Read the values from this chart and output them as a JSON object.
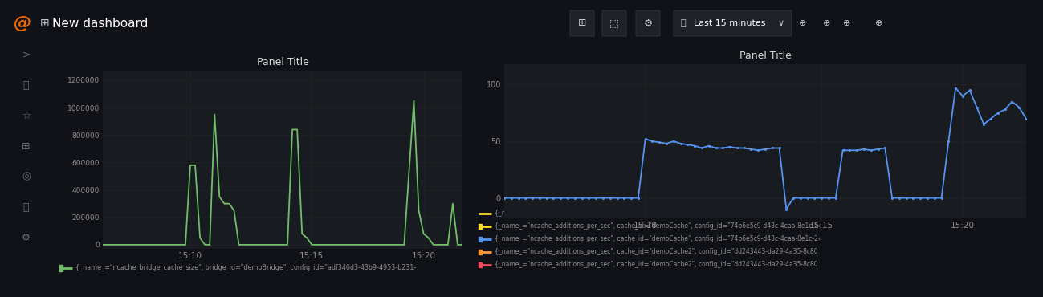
{
  "bg_color": "#111217",
  "panel_bg": "#181b1f",
  "panel_border": "#2c2f36",
  "title_color": "#d8d9da",
  "grid_color": "#202226",
  "tick_color": "#8e8e8e",
  "header_bg": "#111217",
  "sidebar_bg": "#111217",
  "left_panel": {
    "title": "Panel Title",
    "yticks": [
      0,
      200000,
      400000,
      600000,
      800000,
      1000000,
      1200000
    ],
    "ylim": [
      -30000,
      1270000
    ],
    "xtick_labels": [
      "15:10",
      "15:15",
      "15:20"
    ],
    "xtick_pos": [
      18,
      43,
      66
    ],
    "line_color": "#73bf69",
    "line_width": 1.3,
    "legend_label": "{_name_=\"ncache_bridge_cache_size\", bridge_id=\"demoBridge\", config_id=\"adf340d3-43b9-4953-b231-",
    "legend_color": "#73bf69",
    "x_data": [
      0,
      1,
      2,
      3,
      4,
      5,
      6,
      7,
      8,
      9,
      10,
      11,
      12,
      13,
      14,
      15,
      16,
      17,
      18,
      19,
      20,
      21,
      22,
      23,
      24,
      25,
      26,
      27,
      28,
      29,
      30,
      31,
      32,
      33,
      34,
      35,
      36,
      37,
      38,
      39,
      40,
      41,
      42,
      43,
      44,
      45,
      46,
      47,
      48,
      49,
      50,
      51,
      52,
      53,
      54,
      55,
      56,
      57,
      58,
      59,
      60,
      61,
      62,
      63,
      64,
      65,
      66,
      67,
      68,
      69,
      70,
      71,
      72,
      73,
      74
    ],
    "y_data": [
      0,
      0,
      0,
      0,
      0,
      0,
      0,
      0,
      0,
      0,
      0,
      0,
      0,
      0,
      0,
      0,
      0,
      0,
      580000,
      580000,
      50000,
      0,
      0,
      950000,
      350000,
      300000,
      300000,
      250000,
      0,
      0,
      0,
      0,
      0,
      0,
      0,
      0,
      0,
      0,
      0,
      840000,
      840000,
      80000,
      50000,
      0,
      0,
      0,
      0,
      0,
      0,
      0,
      0,
      0,
      0,
      0,
      0,
      0,
      0,
      0,
      0,
      0,
      0,
      0,
      0,
      530000,
      1050000,
      250000,
      80000,
      50000,
      0,
      0,
      0,
      0,
      300000,
      0,
      0
    ]
  },
  "right_panel": {
    "title": "Panel Title",
    "yticks": [
      0,
      50,
      100
    ],
    "ylim": [
      -18,
      118
    ],
    "xtick_labels": [
      "15:10",
      "15:15",
      "15:20"
    ],
    "xtick_pos": [
      20,
      45,
      65
    ],
    "line_color": "#5794f2",
    "line_width": 1.3,
    "markersize": 2.2,
    "legend_labels": [
      "{_name_=\"ncache_additions_per_sec\", cache_id=\"demoCache\", config_id=\"74b6e5c9-d43c-4caa-8e1c-2‹",
      "{_name_=\"ncache_additions_per_sec\", cache_id=\"demoCache\", config_id=\"74b6e5c9-d43c-4caa-8e1c-2‹",
      "{_name_=\"ncache_additions_per_sec\", cache_id=\"demoCache2\", config_id=\"dd243443-da29-4a35-8c80",
      "{_name_=\"ncache_additions_per_sec\", cache_id=\"demoCache2\", config_id=\"dd243443-da29-4a35-8c80"
    ],
    "legend_colors": [
      "#fade2a",
      "#5794f2",
      "#ff9830",
      "#f2495c"
    ],
    "x_data": [
      0,
      1,
      2,
      3,
      4,
      5,
      6,
      7,
      8,
      9,
      10,
      11,
      12,
      13,
      14,
      15,
      16,
      17,
      18,
      19,
      20,
      21,
      22,
      23,
      24,
      25,
      26,
      27,
      28,
      29,
      30,
      31,
      32,
      33,
      34,
      35,
      36,
      37,
      38,
      39,
      40,
      41,
      42,
      43,
      44,
      45,
      46,
      47,
      48,
      49,
      50,
      51,
      52,
      53,
      54,
      55,
      56,
      57,
      58,
      59,
      60,
      61,
      62,
      63,
      64,
      65,
      66,
      67,
      68,
      69,
      70,
      71,
      72,
      73,
      74
    ],
    "y_data": [
      0,
      0,
      0,
      0,
      0,
      0,
      0,
      0,
      0,
      0,
      0,
      0,
      0,
      0,
      0,
      0,
      0,
      0,
      0,
      0,
      52,
      50,
      49,
      48,
      50,
      48,
      47,
      46,
      44,
      46,
      44,
      44,
      45,
      44,
      44,
      43,
      42,
      43,
      44,
      44,
      -10,
      0,
      0,
      0,
      0,
      0,
      0,
      0,
      42,
      42,
      42,
      43,
      42,
      43,
      44,
      0,
      0,
      0,
      0,
      0,
      0,
      0,
      0,
      50,
      97,
      90,
      95,
      80,
      65,
      70,
      75,
      78,
      85,
      80,
      70
    ]
  }
}
